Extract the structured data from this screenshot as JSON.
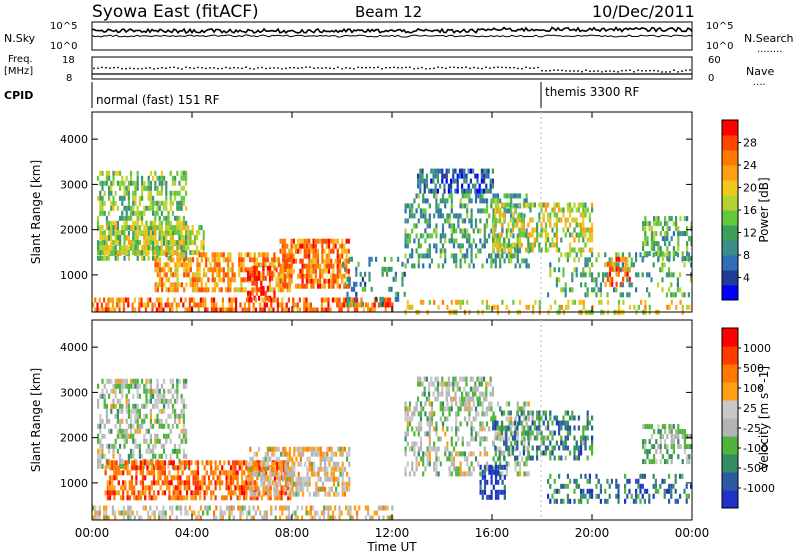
{
  "header": {
    "station": "Syowa East (fitACF)",
    "beam": "Beam 12",
    "date": "10/Dec/2011"
  },
  "summary_panel": {
    "left_labels": {
      "nsky": "N.Sky",
      "freq_line1": "Freq.",
      "freq_line2": "[MHz]",
      "cpid": "CPID"
    },
    "right_labels": {
      "nsearch": "N.Search",
      "nsearch_key": "........",
      "nave": "Nave",
      "nave_key": "...."
    },
    "noise_ticks_left": [
      "10^5",
      "10^0"
    ],
    "noise_ticks_right": [
      "10^5",
      "10^0"
    ],
    "freq_ticks": [
      "18",
      "8"
    ],
    "nave_ticks": [
      "60",
      "0"
    ],
    "cpid_segments": [
      "normal (fast) 151 RF",
      "themis 3300 RF"
    ]
  },
  "chart_data": [
    {
      "type": "heatmap",
      "name": "power-panel",
      "ylabel": "Slant Range [km]",
      "xlabel": "",
      "x_ticks": [
        "00:00",
        "04:00",
        "08:00",
        "12:00",
        "16:00",
        "20:00",
        "00:00"
      ],
      "xlim_hours": [
        0,
        24
      ],
      "y_ticks": [
        "1000",
        "2000",
        "3000",
        "4000"
      ],
      "ylim": [
        180,
        4600
      ],
      "colorbar": {
        "label": "Power [dB]",
        "ticks": [
          "28",
          "24",
          "20",
          "16",
          "12",
          "8",
          "4"
        ],
        "range": [
          0,
          32
        ],
        "colors": [
          "#0000ff",
          "#1e3c96",
          "#2e6eb4",
          "#3c8c8c",
          "#3ca05a",
          "#64c83c",
          "#b4d232",
          "#f0c81e",
          "#ffa014",
          "#ff7800",
          "#ff4600",
          "#ff0000"
        ]
      },
      "regions": [
        {
          "t0": 0.2,
          "t1": 3.8,
          "r0": 1400,
          "r1": 3300,
          "level": 0.45,
          "density": 0.55
        },
        {
          "t0": 0.2,
          "t1": 4.5,
          "r0": 1500,
          "r1": 2100,
          "level": 0.55,
          "density": 0.7
        },
        {
          "t0": 2.5,
          "t1": 8.0,
          "r0": 700,
          "r1": 1500,
          "level": 0.72,
          "density": 0.6
        },
        {
          "t0": 6.2,
          "t1": 7.3,
          "r0": 500,
          "r1": 1200,
          "level": 0.95,
          "density": 0.6
        },
        {
          "t0": 7.5,
          "t1": 10.3,
          "r0": 700,
          "r1": 1800,
          "level": 0.78,
          "density": 0.7
        },
        {
          "t0": 0.0,
          "t1": 12.0,
          "r0": 200,
          "r1": 500,
          "level": 0.8,
          "density": 0.6
        },
        {
          "t0": 10.0,
          "t1": 12.5,
          "r0": 400,
          "r1": 1400,
          "level": 0.3,
          "density": 0.2
        },
        {
          "t0": 13.0,
          "t1": 16.0,
          "r0": 2800,
          "r1": 3350,
          "level": 0.2,
          "density": 0.6
        },
        {
          "t0": 12.5,
          "t1": 17.5,
          "r0": 1200,
          "r1": 2800,
          "level": 0.35,
          "density": 0.45
        },
        {
          "t0": 16.0,
          "t1": 20.0,
          "r0": 1500,
          "r1": 2600,
          "level": 0.55,
          "density": 0.5
        },
        {
          "t0": 18.2,
          "t1": 24.0,
          "r0": 600,
          "r1": 1500,
          "level": 0.4,
          "density": 0.25
        },
        {
          "t0": 20.5,
          "t1": 21.5,
          "r0": 800,
          "r1": 1400,
          "level": 0.85,
          "density": 0.4
        },
        {
          "t0": 22.0,
          "t1": 24.0,
          "r0": 1400,
          "r1": 2300,
          "level": 0.4,
          "density": 0.55
        },
        {
          "t0": 12.5,
          "t1": 24.0,
          "r0": 200,
          "r1": 450,
          "level": 0.6,
          "density": 0.3
        }
      ]
    },
    {
      "type": "heatmap",
      "name": "velocity-panel",
      "ylabel": "Slant Range [km]",
      "xlabel": "Time UT",
      "x_ticks": [
        "00:00",
        "04:00",
        "08:00",
        "12:00",
        "16:00",
        "20:00",
        "00:00"
      ],
      "xlim_hours": [
        0,
        24
      ],
      "y_ticks": [
        "1000",
        "2000",
        "3000",
        "4000"
      ],
      "ylim": [
        180,
        4600
      ],
      "colorbar": {
        "label": "Velocity [m s^-1]",
        "ticks": [
          "1000",
          "500",
          "100",
          "25",
          "-25",
          "-100",
          "-500",
          "-1000"
        ],
        "colors": [
          "#1e32c8",
          "#2e58a0",
          "#328c64",
          "#50b43c",
          "#b4b4b4",
          "#c8c8c8",
          "#ffa014",
          "#ff7800",
          "#ff3c00",
          "#ff0000"
        ]
      },
      "regions": [
        {
          "t0": 0.2,
          "t1": 3.8,
          "r0": 1400,
          "r1": 3300,
          "level": 0.45,
          "density": 0.5
        },
        {
          "t0": 0.5,
          "t1": 8.0,
          "r0": 700,
          "r1": 1500,
          "level": 0.78,
          "density": 0.65
        },
        {
          "t0": 6.2,
          "t1": 10.3,
          "r0": 700,
          "r1": 1800,
          "level": 0.55,
          "density": 0.6
        },
        {
          "t0": 0.0,
          "t1": 12.0,
          "r0": 200,
          "r1": 500,
          "level": 0.55,
          "density": 0.5
        },
        {
          "t0": 13.0,
          "t1": 16.0,
          "r0": 2800,
          "r1": 3350,
          "level": 0.45,
          "density": 0.6
        },
        {
          "t0": 12.5,
          "t1": 17.5,
          "r0": 1200,
          "r1": 2800,
          "level": 0.45,
          "density": 0.45
        },
        {
          "t0": 15.5,
          "t1": 16.5,
          "r0": 700,
          "r1": 1400,
          "level": 0.05,
          "density": 0.5
        },
        {
          "t0": 16.0,
          "t1": 20.0,
          "r0": 1500,
          "r1": 2600,
          "level": 0.25,
          "density": 0.45
        },
        {
          "t0": 18.2,
          "t1": 24.0,
          "r0": 600,
          "r1": 1200,
          "level": 0.2,
          "density": 0.3
        },
        {
          "t0": 22.0,
          "t1": 24.0,
          "r0": 1500,
          "r1": 2300,
          "level": 0.4,
          "density": 0.5
        }
      ]
    }
  ]
}
